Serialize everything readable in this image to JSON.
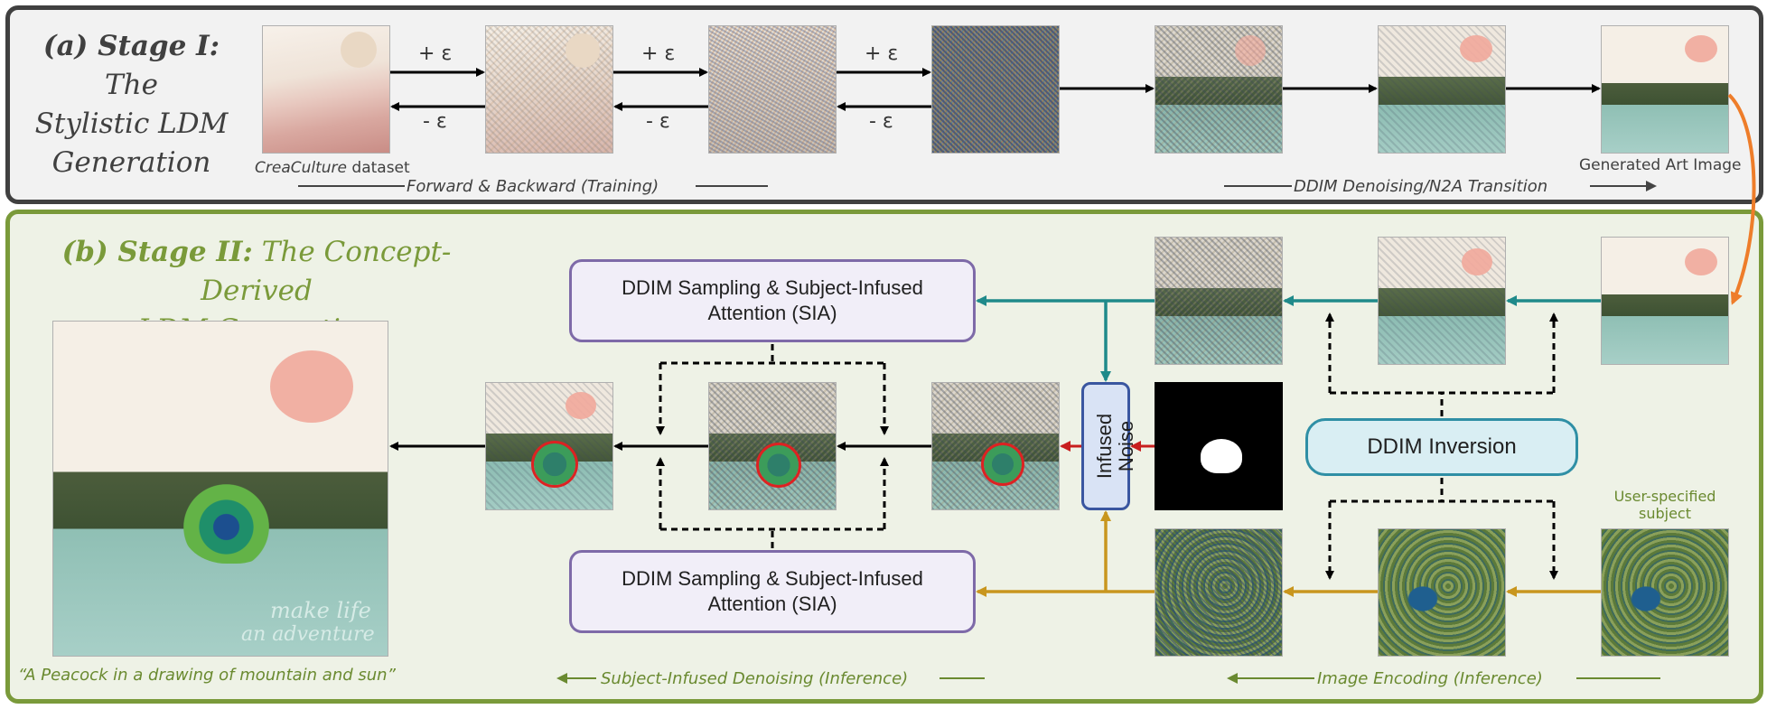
{
  "stage_a": {
    "title_prefix": "(a) Stage I:",
    "title_rest_1": "The",
    "title_line2": "Stylistic LDM",
    "title_line3": "Generation",
    "plus_eps": "+ ε",
    "minus_eps": "- ε",
    "dataset_name": "CreaCulture",
    "dataset_suffix": " dataset",
    "forward_backward": "Forward & Backward (Training)",
    "ddim_transition": "DDIM  Denoising/N2A Transition",
    "generated_art": "Generated Art Image"
  },
  "stage_b": {
    "title_prefix": "(b) Stage II:",
    "title_rest_1": "The Concept-Derived",
    "title_line2": "LDM Generation",
    "sia_line1": "DDIM Sampling & Subject-Infused",
    "sia_line2": "Attention (SIA)",
    "infused_noise_line1": "Infused",
    "infused_noise_line2": "Noise",
    "ddim_inversion": "DDIM Inversion",
    "user_subject_line1": "User-specified",
    "user_subject_line2": "subject",
    "prompt": "“A Peacock in a drawing of mountain and sun”",
    "subject_denoising": "Subject-Infused Denoising  (Inference)",
    "image_encoding": "Image Encoding  (Inference)",
    "art_text_line1": "make life",
    "art_text_line2": "an adventure"
  },
  "colors": {
    "stage_a_border": "#404040",
    "stage_b_border": "#7a9a3a",
    "teal_arrow": "#1f8a8a",
    "gold_arrow": "#c8961e",
    "red_arrow": "#c81e1e",
    "orange_arrow": "#ee7d2a",
    "sia_border": "#7e6aa8",
    "inversion_border": "#2f8fa5",
    "noise_border": "#3a56a0"
  }
}
